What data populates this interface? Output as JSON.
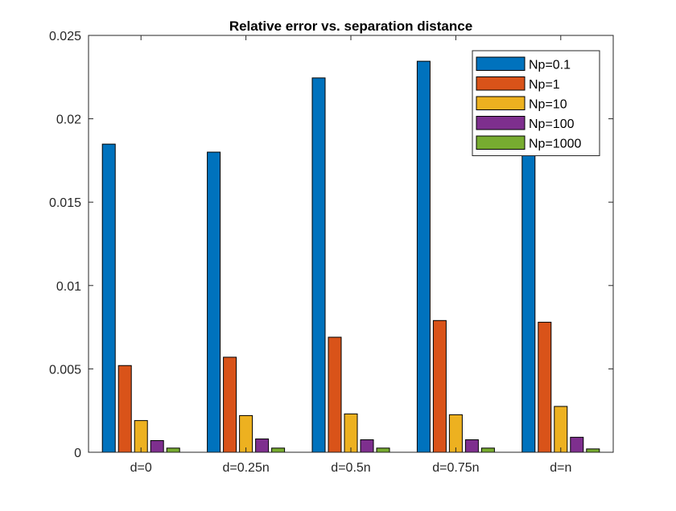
{
  "chart_data": {
    "type": "bar",
    "title": "Relative error vs. separation distance",
    "xlabel": "",
    "ylabel": "",
    "categories": [
      "d=0",
      "d=0.25n",
      "d=0.5n",
      "d=0.75n",
      "d=n"
    ],
    "series": [
      {
        "name": "Np=0.1",
        "color": "#0072bd",
        "values": [
          0.01848,
          0.018,
          0.02245,
          0.02345,
          0.019
        ]
      },
      {
        "name": "Np=1",
        "color": "#d95319",
        "values": [
          0.0052,
          0.0057,
          0.0069,
          0.0079,
          0.0078
        ]
      },
      {
        "name": "Np=10",
        "color": "#edb120",
        "values": [
          0.0019,
          0.0022,
          0.0023,
          0.00225,
          0.00275
        ]
      },
      {
        "name": "Np=100",
        "color": "#7e2f8e",
        "values": [
          0.0007,
          0.0008,
          0.00075,
          0.00075,
          0.0009
        ]
      },
      {
        "name": "Np=1000",
        "color": "#77ac30",
        "values": [
          0.00025,
          0.00025,
          0.00025,
          0.00025,
          0.0002
        ]
      }
    ],
    "ylim": [
      0,
      0.025
    ],
    "yticks": [
      "0",
      "0.005",
      "0.01",
      "0.015",
      "0.02",
      "0.025"
    ],
    "grid": false,
    "legend_position": "top-right"
  }
}
